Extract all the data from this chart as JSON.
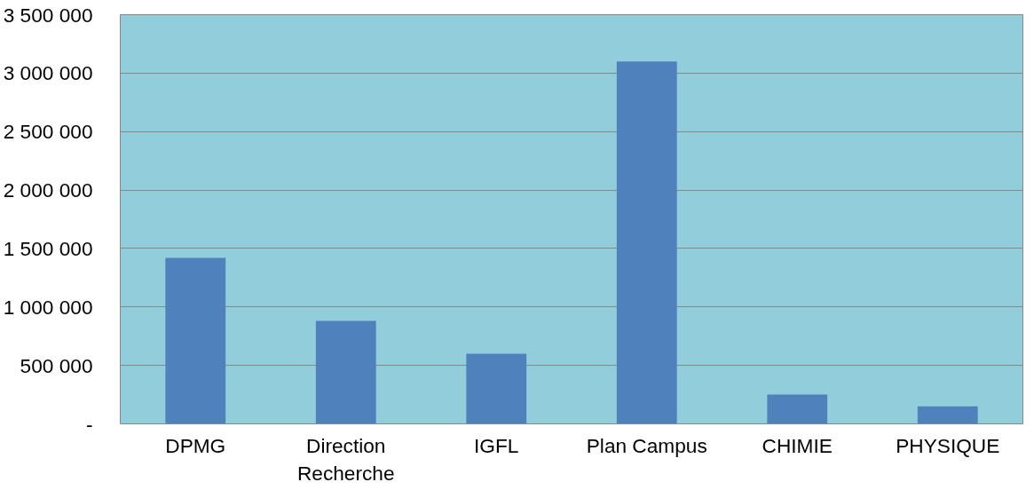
{
  "chart_data": {
    "type": "bar",
    "categories": [
      "DPMG",
      "Direction Recherche",
      "IGFL",
      "Plan Campus",
      "CHIMIE",
      "PHYSIQUE"
    ],
    "values": [
      1420000,
      880000,
      600000,
      3100000,
      250000,
      150000
    ],
    "color": "#4f81bd",
    "ylim": [
      0,
      3500000
    ],
    "yticks": [
      {
        "value": 0,
        "label": "-"
      },
      {
        "value": 500000,
        "label": "500 000"
      },
      {
        "value": 1000000,
        "label": "1 000 000"
      },
      {
        "value": 1500000,
        "label": "1 500 000"
      },
      {
        "value": 2000000,
        "label": "2 000 000"
      },
      {
        "value": 2500000,
        "label": "2 500 000"
      },
      {
        "value": 3000000,
        "label": "3 000 000"
      },
      {
        "value": 3500000,
        "label": "3 500 000"
      }
    ],
    "grid": "y"
  }
}
